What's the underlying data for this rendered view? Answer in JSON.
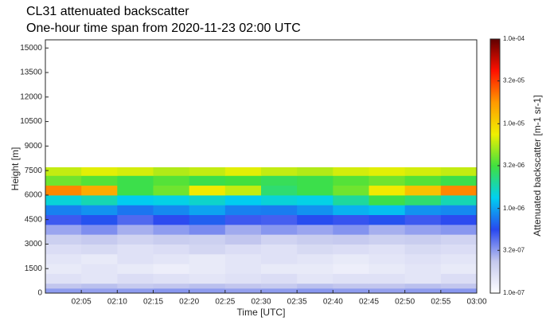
{
  "chart_data": {
    "type": "heatmap",
    "title": "CL31 attenuated backscatter",
    "subtitle": "One-hour time span from 2020-11-23 02:00 UTC",
    "x_label": "Time [UTC]",
    "y_label": "Height [m]",
    "colorbar_label": "Attenuated backscatter [m-1 sr-1]",
    "x_bins": [
      "02:00",
      "02:05",
      "02:10",
      "02:15",
      "02:20",
      "02:25",
      "02:30",
      "02:35",
      "02:40",
      "02:45",
      "02:50",
      "02:55",
      "03:00"
    ],
    "y_bins": [
      0,
      300,
      600,
      1200,
      1800,
      2400,
      3000,
      3600,
      4200,
      4800,
      5400,
      6000,
      6600,
      7200,
      7700
    ],
    "z": [
      [
        3.2e-07,
        3.1e-07,
        3.2e-07,
        3.3e-07,
        3.2e-07,
        3.1e-07,
        3.2e-07,
        3.3e-07,
        3.2e-07,
        3.1e-07,
        3.2e-07,
        3.3e-07
      ],
      [
        2.4e-07,
        2.5e-07,
        2.3e-07,
        2.4e-07,
        2.5e-07,
        2.4e-07,
        2.3e-07,
        2.5e-07,
        2.4e-07,
        2.4e-07,
        2.5e-07,
        2.4e-07
      ],
      [
        1.6e-07,
        1.5e-07,
        1.7e-07,
        1.6e-07,
        1.5e-07,
        1.6e-07,
        1.7e-07,
        1.5e-07,
        1.6e-07,
        1.6e-07,
        1.5e-07,
        1.7e-07
      ],
      [
        1.4e-07,
        1.5e-07,
        1.4e-07,
        1.3e-07,
        1.4e-07,
        1.5e-07,
        1.4e-07,
        1.4e-07,
        1.3e-07,
        1.4e-07,
        1.5e-07,
        1.4e-07
      ],
      [
        1.5e-07,
        1.4e-07,
        1.6e-07,
        1.5e-07,
        1.4e-07,
        1.5e-07,
        1.6e-07,
        1.5e-07,
        1.4e-07,
        1.5e-07,
        1.6e-07,
        1.5e-07
      ],
      [
        1.7e-07,
        1.8e-07,
        1.6e-07,
        1.7e-07,
        1.9e-07,
        1.7e-07,
        1.6e-07,
        1.8e-07,
        1.7e-07,
        1.6e-07,
        1.8e-07,
        1.7e-07
      ],
      [
        2.1e-07,
        2.3e-07,
        2e-07,
        2.2e-07,
        2.1e-07,
        2.4e-07,
        2e-07,
        2.2e-07,
        2.3e-07,
        2.1e-07,
        2.2e-07,
        2e-07
      ],
      [
        3e-07,
        3.5e-07,
        2.8e-07,
        3.2e-07,
        3.6e-07,
        2.9e-07,
        3.3e-07,
        3e-07,
        3.4e-07,
        2.8e-07,
        3.1e-07,
        3.3e-07
      ],
      [
        5e-07,
        6e-07,
        4.5e-07,
        5.5e-07,
        6.5e-07,
        5e-07,
        4.8e-07,
        5.8e-07,
        5.2e-07,
        6e-07,
        5e-07,
        5.5e-07
      ],
      [
        8e-07,
        9e-07,
        7.5e-07,
        8.5e-07,
        1e-06,
        8e-07,
        7.8e-07,
        9e-07,
        1.1e-06,
        1.2e-06,
        9e-07,
        8.5e-07
      ],
      [
        1.5e-06,
        1.8e-06,
        1.3e-06,
        1.4e-06,
        1.6e-06,
        1.3e-06,
        1.5e-06,
        1.4e-06,
        2e-06,
        3e-06,
        2.5e-06,
        1.8e-06
      ],
      [
        2e-05,
        1.5e-05,
        3e-06,
        4e-06,
        8e-06,
        6e-06,
        2.5e-06,
        3e-06,
        4e-06,
        8e-06,
        1.2e-05,
        2e-05
      ],
      [
        4e-06,
        3.5e-06,
        3e-06,
        3.5e-06,
        3e-06,
        3.2e-06,
        2.8e-06,
        3e-06,
        3.5e-06,
        4e-06,
        3.5e-06,
        3e-06
      ],
      [
        6e-06,
        7e-06,
        6.5e-06,
        5.5e-06,
        6e-06,
        7e-06,
        6e-06,
        5.5e-06,
        6.5e-06,
        7e-06,
        6.5e-06,
        6e-06
      ]
    ],
    "xlim": [
      "02:00",
      "03:00"
    ],
    "xticks": [
      "02:05",
      "02:10",
      "02:15",
      "02:20",
      "02:25",
      "02:30",
      "02:35",
      "02:40",
      "02:45",
      "02:50",
      "02:55",
      "03:00"
    ],
    "ylim": [
      0,
      15500
    ],
    "yticks": [
      0,
      1500,
      3000,
      4500,
      6000,
      7500,
      9000,
      10500,
      12000,
      13500,
      15000
    ],
    "clim": [
      1e-07,
      0.0001
    ],
    "color_scale": "log",
    "cticks": [
      {
        "value": 1e-07,
        "label": "1.0e-07"
      },
      {
        "value": 3.2e-07,
        "label": "3.2e-07"
      },
      {
        "value": 1e-06,
        "label": "1.0e-06"
      },
      {
        "value": 3.2e-06,
        "label": "3.2e-06"
      },
      {
        "value": 1e-05,
        "label": "1.0e-05"
      },
      {
        "value": 3.2e-05,
        "label": "3.2e-05"
      },
      {
        "value": 0.0001,
        "label": "1.0e-04"
      }
    ],
    "colormap": [
      "#ffffff",
      "#c4c8ee",
      "#2848f0",
      "#00d0f0",
      "#40e040",
      "#f0f000",
      "#ff9a00",
      "#ff1000",
      "#600000"
    ]
  }
}
